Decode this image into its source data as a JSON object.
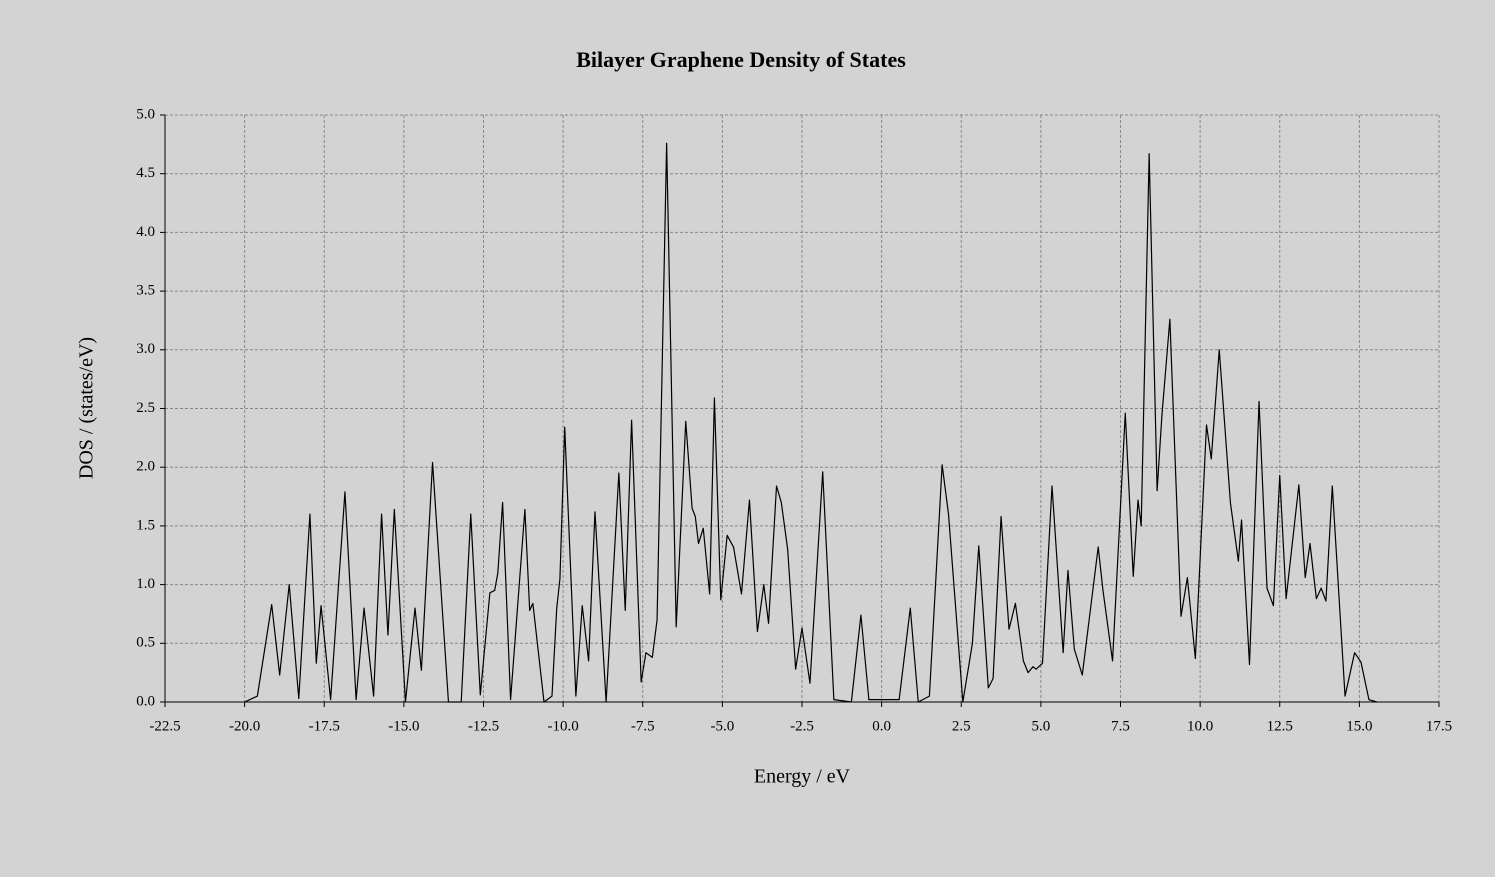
{
  "chart_data": {
    "type": "line",
    "title": "Bilayer Graphene Density of States",
    "xlabel": "Energy / eV",
    "ylabel": "DOS / (states/eV)",
    "color": "#000000",
    "grid": true,
    "xlim": [
      -22.5,
      17.5
    ],
    "ylim": [
      0,
      5
    ],
    "xticks": [
      {
        "value": -22.5,
        "label": "-22.5"
      },
      {
        "value": -20,
        "label": "-20.0"
      },
      {
        "value": -17.5,
        "label": "-17.5"
      },
      {
        "value": -15,
        "label": "-15.0"
      },
      {
        "value": -12.5,
        "label": "-12.5"
      },
      {
        "value": -10,
        "label": "-10.0"
      },
      {
        "value": -7.5,
        "label": "-7.5"
      },
      {
        "value": -5,
        "label": "-5.0"
      },
      {
        "value": -2.5,
        "label": "-2.5"
      },
      {
        "value": 0,
        "label": "0.0"
      },
      {
        "value": 2.5,
        "label": "2.5"
      },
      {
        "value": 5,
        "label": "5.0"
      },
      {
        "value": 7.5,
        "label": "7.5"
      },
      {
        "value": 10,
        "label": "10.0"
      },
      {
        "value": 12.5,
        "label": "12.5"
      },
      {
        "value": 15,
        "label": "15.0"
      },
      {
        "value": 17.5,
        "label": "17.5"
      }
    ],
    "yticks": [
      {
        "value": 0,
        "label": "0.0"
      },
      {
        "value": 0.5,
        "label": "0.5"
      },
      {
        "value": 1,
        "label": "1.0"
      },
      {
        "value": 1.5,
        "label": "1.5"
      },
      {
        "value": 2,
        "label": "2.0"
      },
      {
        "value": 2.5,
        "label": "2.5"
      },
      {
        "value": 3,
        "label": "3.0"
      },
      {
        "value": 3.5,
        "label": "3.5"
      },
      {
        "value": 4,
        "label": "4.0"
      },
      {
        "value": 4.5,
        "label": "4.5"
      },
      {
        "value": 5,
        "label": "5.0"
      }
    ],
    "x": [
      -20.0,
      -19.6,
      -19.15,
      -18.9,
      -18.6,
      -18.3,
      -17.95,
      -17.75,
      -17.6,
      -17.3,
      -16.85,
      -16.5,
      -16.25,
      -15.95,
      -15.7,
      -15.5,
      -15.3,
      -14.95,
      -14.65,
      -14.45,
      -14.1,
      -13.6,
      -13.2,
      -12.9,
      -12.6,
      -12.3,
      -12.15,
      -12.05,
      -11.9,
      -11.65,
      -11.2,
      -11.05,
      -10.95,
      -10.6,
      -10.35,
      -10.2,
      -10.1,
      -9.95,
      -9.6,
      -9.4,
      -9.2,
      -9.0,
      -8.65,
      -8.25,
      -8.05,
      -7.85,
      -7.55,
      -7.4,
      -7.2,
      -7.05,
      -6.75,
      -6.45,
      -6.15,
      -5.95,
      -5.85,
      -5.75,
      -5.6,
      -5.4,
      -5.25,
      -5.05,
      -4.85,
      -4.65,
      -4.4,
      -4.15,
      -3.9,
      -3.7,
      -3.55,
      -3.3,
      -3.15,
      -2.95,
      -2.7,
      -2.5,
      -2.25,
      -1.85,
      -1.5,
      -0.95,
      -0.65,
      -0.4,
      0.55,
      0.9,
      1.15,
      1.5,
      1.9,
      2.1,
      2.55,
      2.85,
      3.05,
      3.35,
      3.5,
      3.75,
      4.0,
      4.2,
      4.45,
      4.6,
      4.75,
      4.85,
      5.05,
      5.35,
      5.7,
      5.85,
      6.05,
      6.3,
      6.8,
      6.95,
      7.25,
      7.65,
      7.9,
      8.05,
      8.15,
      8.4,
      8.65,
      8.8,
      9.05,
      9.4,
      9.6,
      9.85,
      10.2,
      10.35,
      10.6,
      10.95,
      11.2,
      11.3,
      11.55,
      11.85,
      12.1,
      12.3,
      12.5,
      12.7,
      13.1,
      13.3,
      13.45,
      13.65,
      13.8,
      13.95,
      14.15,
      14.55,
      14.85,
      15.05,
      15.3,
      15.55
    ],
    "values": [
      0,
      0.05,
      0.83,
      0.23,
      1.0,
      0.03,
      1.6,
      0.33,
      0.82,
      0.02,
      1.79,
      0.02,
      0.8,
      0.05,
      1.6,
      0.57,
      1.64,
      0,
      0.8,
      0.27,
      2.04,
      0,
      0,
      1.6,
      0.06,
      0.93,
      0.95,
      1.1,
      1.7,
      0.02,
      1.64,
      0.78,
      0.84,
      0,
      0.05,
      0.8,
      1.05,
      2.34,
      0.05,
      0.82,
      0.35,
      1.62,
      0,
      1.95,
      0.78,
      2.4,
      0.17,
      0.42,
      0.38,
      0.7,
      4.76,
      0.64,
      2.39,
      1.65,
      1.58,
      1.35,
      1.48,
      0.92,
      2.59,
      0.87,
      1.42,
      1.32,
      0.92,
      1.72,
      0.6,
      1.0,
      0.67,
      1.84,
      1.7,
      1.3,
      0.28,
      0.63,
      0.16,
      1.96,
      0.02,
      0,
      0.74,
      0.02,
      0.02,
      0.8,
      0,
      0.05,
      2.02,
      1.6,
      0,
      0.5,
      1.33,
      0.12,
      0.2,
      1.58,
      0.62,
      0.84,
      0.35,
      0.25,
      0.3,
      0.28,
      0.33,
      1.84,
      0.42,
      1.12,
      0.45,
      0.23,
      1.32,
      0.95,
      0.35,
      2.46,
      1.07,
      1.72,
      1.5,
      4.67,
      1.8,
      2.44,
      3.26,
      0.73,
      1.06,
      0.37,
      2.36,
      2.07,
      3.0,
      1.7,
      1.2,
      1.55,
      0.32,
      2.56,
      0.97,
      0.82,
      1.93,
      0.88,
      1.85,
      1.06,
      1.35,
      0.88,
      0.97,
      0.86,
      1.84,
      0.05,
      0.42,
      0.34,
      0.02,
      0
    ]
  }
}
